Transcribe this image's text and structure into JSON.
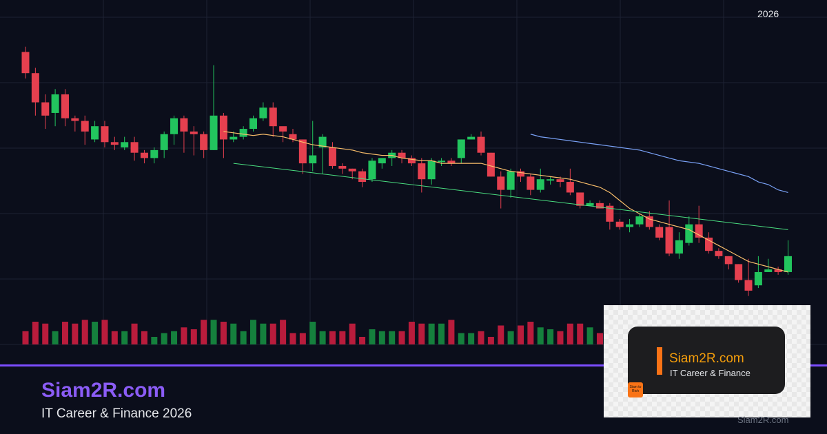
{
  "header": {
    "year": "2026"
  },
  "footer": {
    "brand": "Siam2R.com",
    "tagline": "IT Career & Finance 2026"
  },
  "overlay": {
    "title": "Siam2R.com",
    "subtitle": "IT Career & Finance",
    "logo_text": "Siam to Rich",
    "watermark": "Siam2R.com"
  },
  "colors": {
    "up": "#22c55e",
    "down": "#e5404f",
    "ma_short": "#fbbf6b",
    "ma_long": "#7aa2f7",
    "trendline": "#4ade80",
    "accent": "#7c4dff"
  },
  "chart_data": {
    "type": "candlestick",
    "title": "",
    "ylim": [
      0,
      100
    ],
    "grid": true,
    "candles": [
      [
        96,
        88,
        98,
        86
      ],
      [
        88,
        77,
        90,
        72
      ],
      [
        77,
        72,
        80,
        67
      ],
      [
        73,
        80,
        82,
        68
      ],
      [
        80,
        71,
        82,
        68
      ],
      [
        71,
        70,
        72,
        66
      ],
      [
        70,
        66,
        72,
        61
      ],
      [
        63,
        68,
        70,
        62
      ],
      [
        68,
        62,
        70,
        60
      ],
      [
        62,
        61,
        64,
        59
      ],
      [
        60,
        62,
        64,
        59
      ],
      [
        62,
        58,
        64,
        55
      ],
      [
        58,
        56,
        59,
        54
      ],
      [
        56,
        59,
        60,
        54
      ],
      [
        59,
        65,
        66,
        56
      ],
      [
        65,
        71,
        72,
        61
      ],
      [
        71,
        66,
        72,
        58
      ],
      [
        66,
        65,
        68,
        57
      ],
      [
        65,
        59,
        66,
        56
      ],
      [
        59,
        72,
        91,
        59
      ],
      [
        72,
        63,
        73,
        56
      ],
      [
        63,
        64,
        66,
        62
      ],
      [
        64,
        67,
        68,
        63
      ],
      [
        67,
        71,
        72,
        66
      ],
      [
        71,
        75,
        77,
        70
      ],
      [
        75,
        68,
        77,
        64
      ],
      [
        68,
        66,
        67,
        62
      ],
      [
        65,
        63,
        67,
        62
      ],
      [
        63,
        54,
        63,
        50
      ],
      [
        54,
        57,
        70,
        51
      ],
      [
        60,
        64,
        65,
        50
      ],
      [
        60,
        53,
        62,
        52
      ],
      [
        53,
        52,
        54,
        50
      ],
      [
        52,
        51,
        52,
        48
      ],
      [
        51,
        47,
        52,
        45
      ],
      [
        48,
        55,
        56,
        47
      ],
      [
        54,
        56,
        56,
        52
      ],
      [
        56,
        58,
        59,
        53
      ],
      [
        58,
        56,
        59,
        54
      ],
      [
        56,
        54,
        57,
        53
      ],
      [
        54,
        48,
        56,
        43
      ],
      [
        48,
        55,
        56,
        46
      ],
      [
        55,
        55,
        56,
        53
      ],
      [
        55,
        54,
        56,
        53
      ],
      [
        56,
        63,
        63,
        54
      ],
      [
        63,
        64,
        65,
        63
      ],
      [
        64,
        58,
        66,
        57
      ],
      [
        58,
        49,
        58,
        49
      ],
      [
        49,
        44,
        51,
        37
      ],
      [
        44,
        51,
        52,
        41
      ],
      [
        51,
        49,
        52,
        47
      ],
      [
        49,
        44,
        50,
        42
      ],
      [
        44,
        48,
        52,
        43
      ],
      [
        48,
        48,
        49,
        46
      ],
      [
        48,
        47,
        49,
        45
      ],
      [
        47,
        43,
        52,
        42
      ],
      [
        43,
        38,
        43,
        37
      ],
      [
        38,
        39,
        40,
        38
      ],
      [
        39,
        37,
        40,
        37
      ],
      [
        38,
        32,
        39,
        29
      ],
      [
        32,
        30,
        33,
        29
      ],
      [
        30,
        31,
        33,
        28
      ],
      [
        31,
        34,
        35,
        30
      ],
      [
        34,
        30,
        36,
        29
      ],
      [
        30,
        26,
        31,
        25
      ],
      [
        30,
        20,
        40,
        19
      ],
      [
        20,
        25,
        28,
        18
      ],
      [
        24,
        31,
        34,
        23
      ],
      [
        31,
        26,
        38,
        24
      ],
      [
        26,
        21,
        28,
        20
      ],
      [
        21,
        19,
        22,
        18
      ],
      [
        19,
        16,
        19,
        14
      ],
      [
        16,
        10,
        16,
        9
      ],
      [
        10,
        6,
        18,
        4
      ],
      [
        8,
        13,
        19,
        7
      ],
      [
        13,
        14,
        18,
        13
      ],
      [
        14,
        13,
        15,
        12
      ],
      [
        13,
        19,
        25,
        12
      ]
    ],
    "volume": [
      35,
      60,
      55,
      35,
      60,
      55,
      65,
      60,
      65,
      35,
      35,
      55,
      35,
      20,
      30,
      35,
      45,
      40,
      65,
      65,
      60,
      55,
      35,
      65,
      55,
      55,
      65,
      30,
      30,
      60,
      35,
      35,
      35,
      55,
      20,
      40,
      35,
      35,
      35,
      60,
      55,
      55,
      55,
      65,
      30,
      30,
      35,
      20,
      50,
      35,
      50,
      60,
      45,
      40,
      35,
      55,
      55,
      45,
      30,
      55,
      40,
      50,
      60,
      55,
      35,
      40,
      35,
      55,
      40,
      45,
      40,
      55,
      35,
      45,
      45,
      40,
      40,
      45
    ],
    "ma_short": [
      null,
      null,
      null,
      null,
      null,
      null,
      null,
      null,
      null,
      null,
      null,
      null,
      null,
      null,
      null,
      null,
      null,
      null,
      null,
      null,
      66,
      65.5,
      65,
      64.5,
      65,
      64.5,
      64,
      63,
      62,
      61,
      60.5,
      60,
      59.5,
      59,
      58,
      57.5,
      57,
      57,
      56,
      55.5,
      55,
      55,
      54,
      54,
      54,
      54,
      54,
      53,
      52,
      51,
      50.5,
      50,
      49.5,
      49,
      48.5,
      48,
      47,
      46,
      45,
      43,
      40,
      37,
      35,
      33,
      32,
      31,
      30,
      29,
      27,
      25,
      23,
      21,
      19,
      17,
      16,
      15,
      14,
      13
    ],
    "ma_long": [
      null,
      null,
      null,
      null,
      null,
      null,
      null,
      null,
      null,
      null,
      null,
      null,
      null,
      null,
      null,
      null,
      null,
      null,
      null,
      null,
      null,
      null,
      null,
      null,
      null,
      null,
      null,
      null,
      null,
      null,
      null,
      null,
      null,
      null,
      null,
      null,
      null,
      null,
      null,
      null,
      null,
      null,
      null,
      null,
      null,
      null,
      null,
      null,
      null,
      null,
      null,
      65,
      64,
      63.5,
      63,
      62.5,
      62,
      61.5,
      61,
      60.5,
      60,
      59.5,
      59,
      58,
      57,
      56,
      55,
      54.5,
      54,
      53,
      52,
      51,
      50,
      49,
      47,
      46,
      44,
      43
    ],
    "trendline": {
      "start": [
        21,
        54
      ],
      "end": [
        77,
        29
      ]
    }
  }
}
